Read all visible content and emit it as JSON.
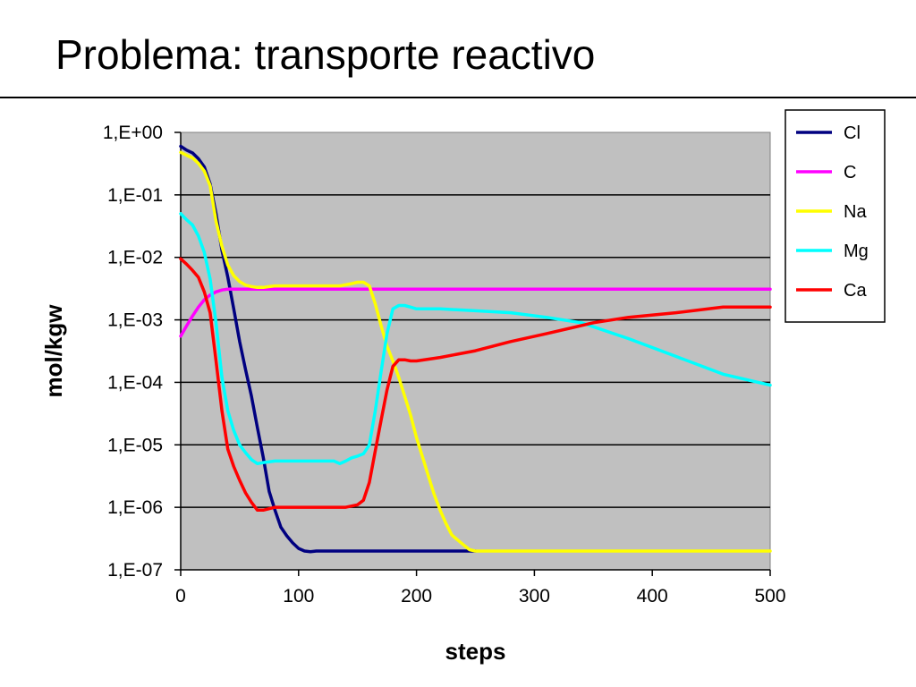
{
  "slide": {
    "title": "Problema: transporte reactivo"
  },
  "chart_data": {
    "type": "line",
    "title": "",
    "xlabel": "steps",
    "ylabel": "mol/kgw",
    "xlim": [
      0,
      500
    ],
    "ylim": [
      1e-07,
      1
    ],
    "yscale": "log",
    "x_ticks": [
      "0",
      "100",
      "200",
      "300",
      "400",
      "500"
    ],
    "y_ticks": [
      "1,E+00",
      "1,E-01",
      "1,E-02",
      "1,E-03",
      "1,E-04",
      "1,E-05",
      "1,E-06",
      "1,E-07"
    ],
    "grid": "horizontal",
    "legend_position": "right",
    "plot_background": "#c0c0c0",
    "series": [
      {
        "name": "Cl",
        "color": "#000080",
        "points": [
          [
            0,
            0.6
          ],
          [
            5,
            0.52
          ],
          [
            10,
            0.47
          ],
          [
            15,
            0.38
          ],
          [
            20,
            0.28
          ],
          [
            25,
            0.15
          ],
          [
            30,
            0.05
          ],
          [
            35,
            0.013
          ],
          [
            40,
            0.0048
          ],
          [
            45,
            0.0015
          ],
          [
            50,
            0.00045
          ],
          [
            55,
            0.00016
          ],
          [
            60,
            6e-05
          ],
          [
            65,
            1.9e-05
          ],
          [
            70,
            6.3e-06
          ],
          [
            75,
            1.8e-06
          ],
          [
            80,
            9e-07
          ],
          [
            85,
            4.8e-07
          ],
          [
            90,
            3.5e-07
          ],
          [
            95,
            2.7e-07
          ],
          [
            100,
            2.2e-07
          ],
          [
            105,
            2e-07
          ],
          [
            110,
            1.95e-07
          ],
          [
            115,
            2e-07
          ],
          [
            130,
            2e-07
          ],
          [
            200,
            2e-07
          ],
          [
            250,
            2e-07
          ]
        ]
      },
      {
        "name": "C",
        "color": "#ff00ff",
        "points": [
          [
            0,
            0.00055
          ],
          [
            5,
            0.0008
          ],
          [
            10,
            0.00115
          ],
          [
            15,
            0.0016
          ],
          [
            20,
            0.0021
          ],
          [
            25,
            0.0025
          ],
          [
            30,
            0.0028
          ],
          [
            35,
            0.003
          ],
          [
            40,
            0.0031
          ],
          [
            50,
            0.0031
          ],
          [
            100,
            0.0031
          ],
          [
            200,
            0.0031
          ],
          [
            300,
            0.0031
          ],
          [
            400,
            0.0031
          ],
          [
            500,
            0.0031
          ]
        ]
      },
      {
        "name": "Na",
        "color": "#ffff00",
        "points": [
          [
            0,
            0.48
          ],
          [
            5,
            0.43
          ],
          [
            10,
            0.39
          ],
          [
            15,
            0.32
          ],
          [
            20,
            0.24
          ],
          [
            25,
            0.14
          ],
          [
            30,
            0.038
          ],
          [
            35,
            0.015
          ],
          [
            40,
            0.0075
          ],
          [
            45,
            0.0051
          ],
          [
            50,
            0.0041
          ],
          [
            55,
            0.0036
          ],
          [
            60,
            0.0034
          ],
          [
            65,
            0.0033
          ],
          [
            70,
            0.0033
          ],
          [
            75,
            0.0034
          ],
          [
            80,
            0.0035
          ],
          [
            100,
            0.0035
          ],
          [
            120,
            0.0035
          ],
          [
            135,
            0.0035
          ],
          [
            145,
            0.0038
          ],
          [
            150,
            0.004
          ],
          [
            155,
            0.004
          ],
          [
            160,
            0.0035
          ],
          [
            165,
            0.0018
          ],
          [
            170,
            0.0008
          ],
          [
            175,
            0.00038
          ],
          [
            180,
            0.00022
          ],
          [
            185,
            0.00012
          ],
          [
            190,
            6e-05
          ],
          [
            195,
            3e-05
          ],
          [
            200,
            1.3e-05
          ],
          [
            205,
            6.5e-06
          ],
          [
            210,
            3.2e-06
          ],
          [
            215,
            1.6e-06
          ],
          [
            220,
            9e-07
          ],
          [
            225,
            5.5e-07
          ],
          [
            230,
            3.6e-07
          ],
          [
            235,
            3e-07
          ],
          [
            240,
            2.5e-07
          ],
          [
            245,
            2.1e-07
          ],
          [
            250,
            2e-07
          ],
          [
            300,
            2e-07
          ],
          [
            400,
            2e-07
          ],
          [
            500,
            2e-07
          ]
        ]
      },
      {
        "name": "Mg",
        "color": "#00ffff",
        "points": [
          [
            0,
            0.05
          ],
          [
            5,
            0.04
          ],
          [
            10,
            0.033
          ],
          [
            15,
            0.022
          ],
          [
            20,
            0.012
          ],
          [
            25,
            0.0045
          ],
          [
            30,
            0.0009
          ],
          [
            35,
            0.00012
          ],
          [
            40,
            3.5e-05
          ],
          [
            45,
            1.7e-05
          ],
          [
            50,
            1e-05
          ],
          [
            55,
            7.5e-06
          ],
          [
            60,
            5.8e-06
          ],
          [
            65,
            5e-06
          ],
          [
            70,
            5.2e-06
          ],
          [
            80,
            5.5e-06
          ],
          [
            90,
            5.5e-06
          ],
          [
            100,
            5.5e-06
          ],
          [
            120,
            5.5e-06
          ],
          [
            130,
            5.5e-06
          ],
          [
            135,
            5e-06
          ],
          [
            140,
            5.5e-06
          ],
          [
            145,
            6.2e-06
          ],
          [
            150,
            6.6e-06
          ],
          [
            155,
            7.2e-06
          ],
          [
            160,
            1e-05
          ],
          [
            165,
            3.5e-05
          ],
          [
            170,
            0.00015
          ],
          [
            175,
            0.0006
          ],
          [
            180,
            0.0015
          ],
          [
            185,
            0.0017
          ],
          [
            190,
            0.0017
          ],
          [
            195,
            0.0016
          ],
          [
            200,
            0.0015
          ],
          [
            220,
            0.0015
          ],
          [
            250,
            0.0014
          ],
          [
            280,
            0.0013
          ],
          [
            310,
            0.0011
          ],
          [
            340,
            0.0009
          ],
          [
            380,
            0.0005
          ],
          [
            420,
            0.00026
          ],
          [
            460,
            0.000135
          ],
          [
            500,
            9e-05
          ]
        ]
      },
      {
        "name": "Ca",
        "color": "#ff0000",
        "points": [
          [
            0,
            0.0095
          ],
          [
            5,
            0.0078
          ],
          [
            10,
            0.0062
          ],
          [
            15,
            0.0048
          ],
          [
            20,
            0.0028
          ],
          [
            25,
            0.0013
          ],
          [
            30,
            0.00022
          ],
          [
            35,
            3.5e-05
          ],
          [
            40,
            8.5e-06
          ],
          [
            45,
            4.5e-06
          ],
          [
            50,
            2.7e-06
          ],
          [
            55,
            1.7e-06
          ],
          [
            60,
            1.2e-06
          ],
          [
            65,
            9e-07
          ],
          [
            70,
            9e-07
          ],
          [
            75,
            9.5e-07
          ],
          [
            80,
            1e-06
          ],
          [
            100,
            1e-06
          ],
          [
            120,
            1e-06
          ],
          [
            140,
            1e-06
          ],
          [
            150,
            1.1e-06
          ],
          [
            155,
            1.3e-06
          ],
          [
            160,
            2.5e-06
          ],
          [
            165,
            8e-06
          ],
          [
            170,
            2.5e-05
          ],
          [
            175,
            7.5e-05
          ],
          [
            180,
            0.00018
          ],
          [
            185,
            0.00023
          ],
          [
            190,
            0.00023
          ],
          [
            195,
            0.00022
          ],
          [
            200,
            0.00022
          ],
          [
            220,
            0.00025
          ],
          [
            250,
            0.00032
          ],
          [
            280,
            0.00045
          ],
          [
            310,
            0.0006
          ],
          [
            350,
            0.0009
          ],
          [
            380,
            0.0011
          ],
          [
            420,
            0.0013
          ],
          [
            460,
            0.0016
          ],
          [
            500,
            0.0016
          ]
        ]
      }
    ]
  }
}
